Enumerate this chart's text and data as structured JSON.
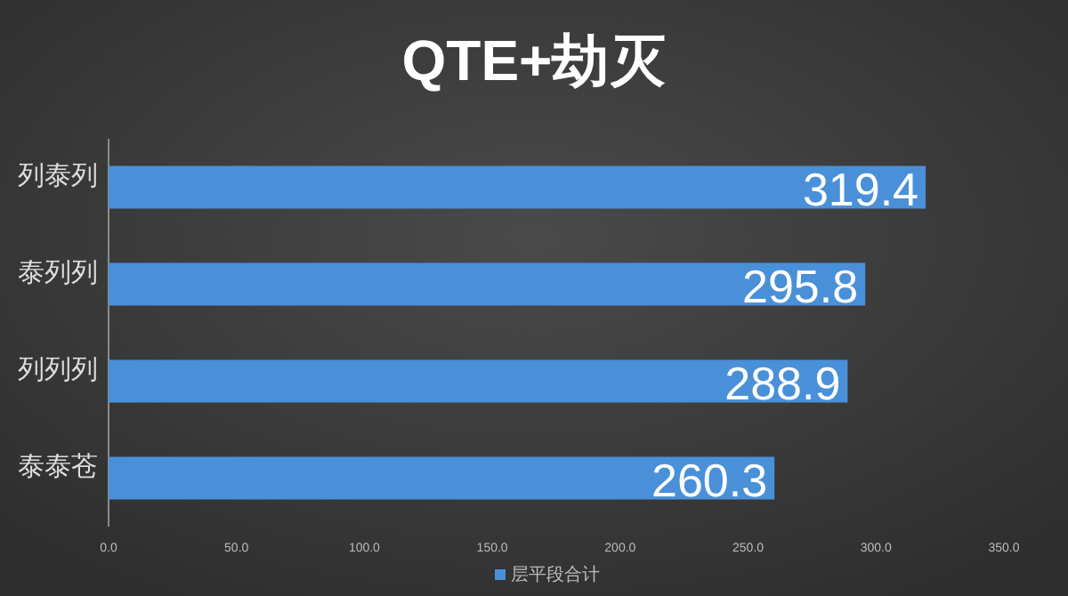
{
  "chart_data": {
    "type": "bar",
    "orientation": "horizontal",
    "title": "QTE+劫灭",
    "categories": [
      "列泰列",
      "泰列列",
      "列列列",
      "泰泰苍"
    ],
    "series": [
      {
        "name": "层平段合计",
        "color": "#4a90d9",
        "values": [
          319.4,
          295.8,
          288.9,
          260.3
        ]
      }
    ],
    "xlim": [
      0,
      350
    ],
    "xticks": [
      {
        "value": 0,
        "label": "0.0"
      },
      {
        "value": 50,
        "label": "50.0"
      },
      {
        "value": 100,
        "label": "100.0"
      },
      {
        "value": 150,
        "label": "150.0"
      },
      {
        "value": 200,
        "label": "200.0"
      },
      {
        "value": 250,
        "label": "250.0"
      },
      {
        "value": 300,
        "label": "300.0"
      },
      {
        "value": 350,
        "label": "350.0"
      }
    ],
    "data_labels": true,
    "grid": false,
    "legend": "bottom"
  }
}
